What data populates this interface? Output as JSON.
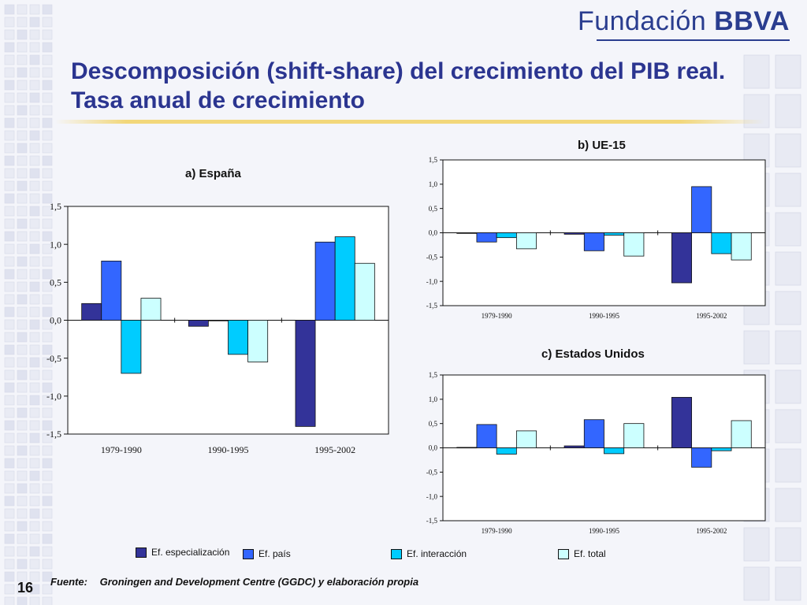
{
  "brand": {
    "word1": "Fundación",
    "word2": "BBVA"
  },
  "title": "Descomposición (shift-share) del crecimiento del PIB real. Tasa anual de crecimiento",
  "legend": [
    {
      "label": "Ef. especialización",
      "color": "#333399"
    },
    {
      "label": "Ef. país",
      "color": "#3366ff"
    },
    {
      "label": "Ef. interacción",
      "color": "#00ccff"
    },
    {
      "label": "Ef. total",
      "color": "#ccffff"
    }
  ],
  "source": {
    "label": "Fuente:",
    "text": "Groningen and Development Centre (GGDC) y elaboración propia"
  },
  "page_number": "16",
  "chart_data": [
    {
      "type": "bar",
      "title": "a) España",
      "categories": [
        "1979-1990",
        "1990-1995",
        "1995-2002"
      ],
      "ylim": [
        -1.5,
        1.5
      ],
      "yticks": [
        "1,5",
        "1,0",
        "0,5",
        "0,0",
        "-0,5",
        "-1,0",
        "-1,5"
      ],
      "series": [
        {
          "name": "Ef. especialización",
          "values": [
            0.22,
            -0.08,
            -1.4
          ]
        },
        {
          "name": "Ef. país",
          "values": [
            0.78,
            0.0,
            1.03
          ]
        },
        {
          "name": "Ef. interacción",
          "values": [
            -0.7,
            -0.45,
            1.1
          ]
        },
        {
          "name": "Ef. total",
          "values": [
            0.29,
            -0.55,
            0.75
          ]
        }
      ],
      "grid": false,
      "legend_position": "bottom"
    },
    {
      "type": "bar",
      "title": "b) UE-15",
      "categories": [
        "1979-1990",
        "1990-1995",
        "1995-2002"
      ],
      "ylim": [
        -1.5,
        1.5
      ],
      "yticks": [
        "1,5",
        "1,0",
        "0,5",
        "0,0",
        "-0,5",
        "-1,0",
        "-1,5"
      ],
      "series": [
        {
          "name": "Ef. especialización",
          "values": [
            0.0,
            -0.03,
            -1.03
          ]
        },
        {
          "name": "Ef. país",
          "values": [
            -0.19,
            -0.37,
            0.95
          ]
        },
        {
          "name": "Ef. interacción",
          "values": [
            -0.1,
            -0.05,
            -0.43
          ]
        },
        {
          "name": "Ef. total",
          "values": [
            -0.33,
            -0.48,
            -0.56
          ]
        }
      ],
      "grid": false,
      "legend_position": "bottom"
    },
    {
      "type": "bar",
      "title": "c) Estados Unidos",
      "categories": [
        "1979-1990",
        "1990-1995",
        "1995-2002"
      ],
      "ylim": [
        -1.5,
        1.5
      ],
      "yticks": [
        "1,5",
        "1,0",
        "0,5",
        "0,0",
        "-0,5",
        "-1,0",
        "-1,5"
      ],
      "series": [
        {
          "name": "Ef. especialización",
          "values": [
            0.01,
            0.04,
            1.04
          ]
        },
        {
          "name": "Ef. país",
          "values": [
            0.48,
            0.58,
            -0.4
          ]
        },
        {
          "name": "Ef. interacción",
          "values": [
            -0.13,
            -0.12,
            -0.06
          ]
        },
        {
          "name": "Ef. total",
          "values": [
            0.35,
            0.5,
            0.56
          ]
        }
      ],
      "grid": false,
      "legend_position": "bottom"
    }
  ]
}
